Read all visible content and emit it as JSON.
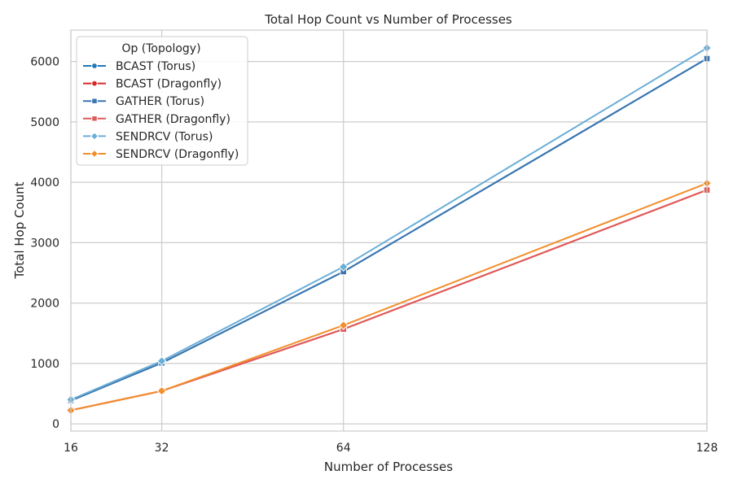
{
  "chart_data": {
    "type": "line",
    "title": "Total Hop Count vs Number of Processes",
    "xlabel": "Number of Processes",
    "ylabel": "Total Hop Count",
    "x": [
      16,
      32,
      64,
      128
    ],
    "x_tick_labels": [
      "16",
      "32",
      "64",
      "128"
    ],
    "xlim": [
      16,
      128
    ],
    "ylim": [
      -120,
      6520
    ],
    "y_ticks": [
      0,
      1000,
      2000,
      3000,
      4000,
      5000,
      6000
    ],
    "y_tick_labels": [
      "0",
      "1000",
      "2000",
      "3000",
      "4000",
      "5000",
      "6000"
    ],
    "grid": true,
    "legend_title": "Op (Topology)",
    "legend_position": "upper-left",
    "series": [
      {
        "name": "BCAST (Torus)",
        "values": [
          384,
          1008,
          2520,
          6048
        ],
        "color": "#1f77b4",
        "marker": "circle"
      },
      {
        "name": "BCAST (Dragonfly)",
        "values": [
          224,
          544,
          1568,
          3872
        ],
        "color": "#d62728",
        "marker": "circle"
      },
      {
        "name": "GATHER (Torus)",
        "values": [
          384,
          1008,
          2520,
          6048
        ],
        "color": "#3a75b0",
        "marker": "square"
      },
      {
        "name": "GATHER (Dragonfly)",
        "values": [
          224,
          544,
          1568,
          3872
        ],
        "color": "#e05a5a",
        "marker": "square"
      },
      {
        "name": "SENDRCV (Torus)",
        "values": [
          400,
          1040,
          2600,
          6224
        ],
        "color": "#6baed6",
        "marker": "diamond"
      },
      {
        "name": "SENDRCV (Dragonfly)",
        "values": [
          224,
          544,
          1632,
          3984
        ],
        "color": "#f28e2b",
        "marker": "diamond"
      }
    ]
  }
}
